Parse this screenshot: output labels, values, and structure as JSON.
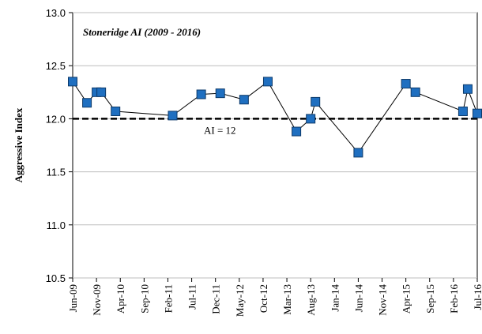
{
  "chart_data": {
    "type": "line",
    "title": "Stoneridge AI (2009 - 2016)",
    "y_label": "Aggressive Index",
    "x": [
      "2009-06",
      "2009-09",
      "2009-11",
      "2009-12",
      "2010-03",
      "2011-03",
      "2011-09",
      "2012-01",
      "2012-06",
      "2012-11",
      "2013-05",
      "2013-08",
      "2013-09",
      "2014-06",
      "2015-04",
      "2015-06",
      "2016-04",
      "2016-05",
      "2016-07"
    ],
    "series": [
      {
        "color": "#1f6fc0",
        "values": [
          12.35,
          12.15,
          12.25,
          12.25,
          12.07,
          12.03,
          12.23,
          12.24,
          12.18,
          12.35,
          11.88,
          12.0,
          12.16,
          11.68,
          12.33,
          12.25,
          12.07,
          12.28,
          12.05
        ]
      }
    ],
    "xlim": [
      "2009-06",
      "2016-07"
    ],
    "xticks": [
      {
        "value": "2009-06",
        "label": "Jun-09"
      },
      {
        "value": "2009-11",
        "label": "Nov-09"
      },
      {
        "value": "2010-04",
        "label": "Apr-10"
      },
      {
        "value": "2010-09",
        "label": "Sep-10"
      },
      {
        "value": "2011-02",
        "label": "Feb-11"
      },
      {
        "value": "2011-07",
        "label": "Jul-11"
      },
      {
        "value": "2011-12",
        "label": "Dec-11"
      },
      {
        "value": "2012-05",
        "label": "May-12"
      },
      {
        "value": "2012-10",
        "label": "Oct-12"
      },
      {
        "value": "2013-03",
        "label": "Mar-13"
      },
      {
        "value": "2013-08",
        "label": "Aug-13"
      },
      {
        "value": "2014-01",
        "label": "Jan-14"
      },
      {
        "value": "2014-06",
        "label": "Jun-14"
      },
      {
        "value": "2014-11",
        "label": "Nov-14"
      },
      {
        "value": "2015-04",
        "label": "Apr-15"
      },
      {
        "value": "2015-09",
        "label": "Sep-15"
      },
      {
        "value": "2016-02",
        "label": "Feb-16"
      },
      {
        "value": "2016-07",
        "label": "Jul-16"
      }
    ],
    "ylim": [
      10.5,
      13.0
    ],
    "yticks": [
      {
        "value": 10.5,
        "label": "10.5"
      },
      {
        "value": 11.0,
        "label": "11.0"
      },
      {
        "value": 11.5,
        "label": "11.5"
      },
      {
        "value": 12.0,
        "label": "12.0"
      },
      {
        "value": 12.5,
        "label": "12.5"
      },
      {
        "value": 13.0,
        "label": "13.0"
      }
    ],
    "grid": true,
    "reference": {
      "value": 12,
      "label": "AI = 12"
    }
  }
}
